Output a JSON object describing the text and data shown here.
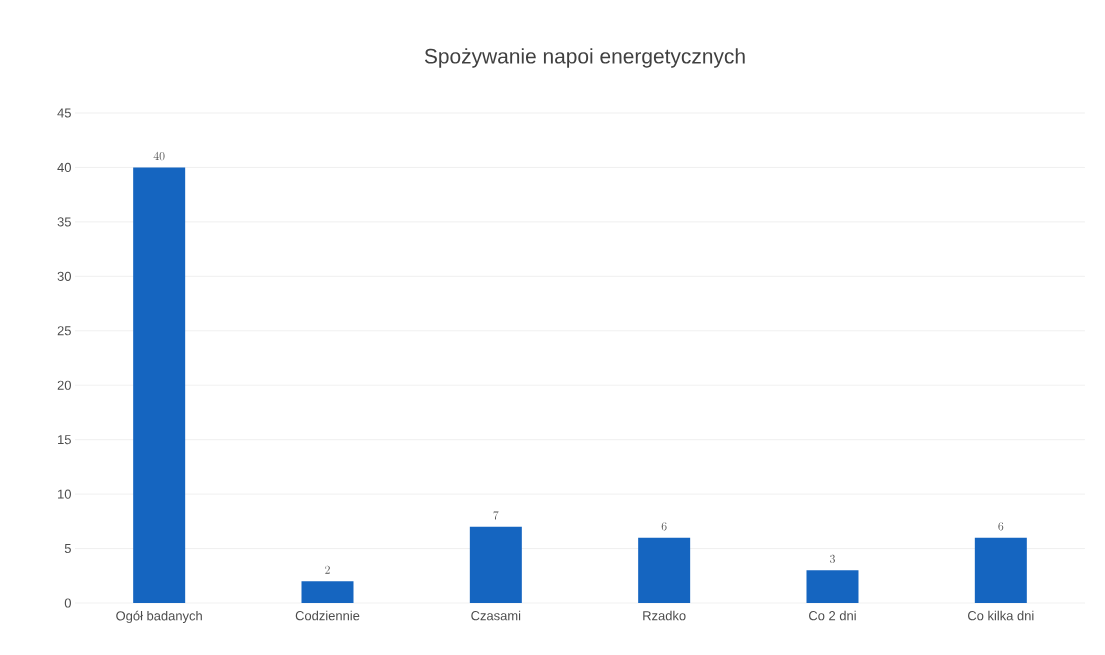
{
  "chart_data": {
    "type": "bar",
    "title": "Spożywanie napoi energetycznych",
    "categories": [
      "Ogół badanych",
      "Codziennie",
      "Czasami",
      "Rzadko",
      "Co 2 dni",
      "Co kilka dni"
    ],
    "values": [
      40,
      2,
      7,
      6,
      3,
      6
    ],
    "color": "#1565c0",
    "ylim": [
      0,
      45
    ],
    "yticks": [
      0,
      5,
      10,
      15,
      20,
      25,
      30,
      35,
      40,
      45
    ],
    "grid": "y",
    "data_labels": true
  }
}
